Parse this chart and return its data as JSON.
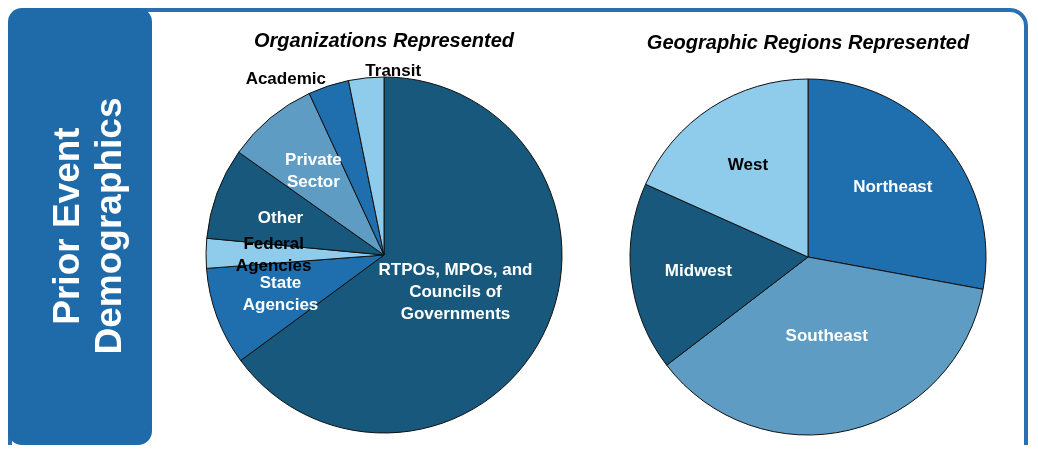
{
  "chart_data": [
    {
      "type": "pie",
      "title": "Organizations Represented",
      "annotations": [
        "Prior Event Demographics"
      ],
      "categories": [
        "RTPOs, MPOs, and Councils of Governments",
        "State Agencies",
        "Federal Agencies",
        "Other",
        "Private Sector",
        "Academic",
        "Transit"
      ],
      "values": [
        64.9,
        8.9,
        2.7,
        8.3,
        8.3,
        3.7,
        3.2
      ],
      "colors": [
        "#17587c",
        "#1f6fae",
        "#8fcbeb",
        "#17587c",
        "#5e9cc4",
        "#1f6fae",
        "#8fcbeb"
      ]
    },
    {
      "type": "pie",
      "title": "Geographic Regions Represented",
      "categories": [
        "Northeast",
        "Southeast",
        "Midwest",
        "West"
      ],
      "values": [
        27.9,
        36.7,
        17.1,
        18.3
      ],
      "colors": [
        "#1f6fae",
        "#5e9cc4",
        "#17587c",
        "#8fcbeb"
      ]
    }
  ]
}
